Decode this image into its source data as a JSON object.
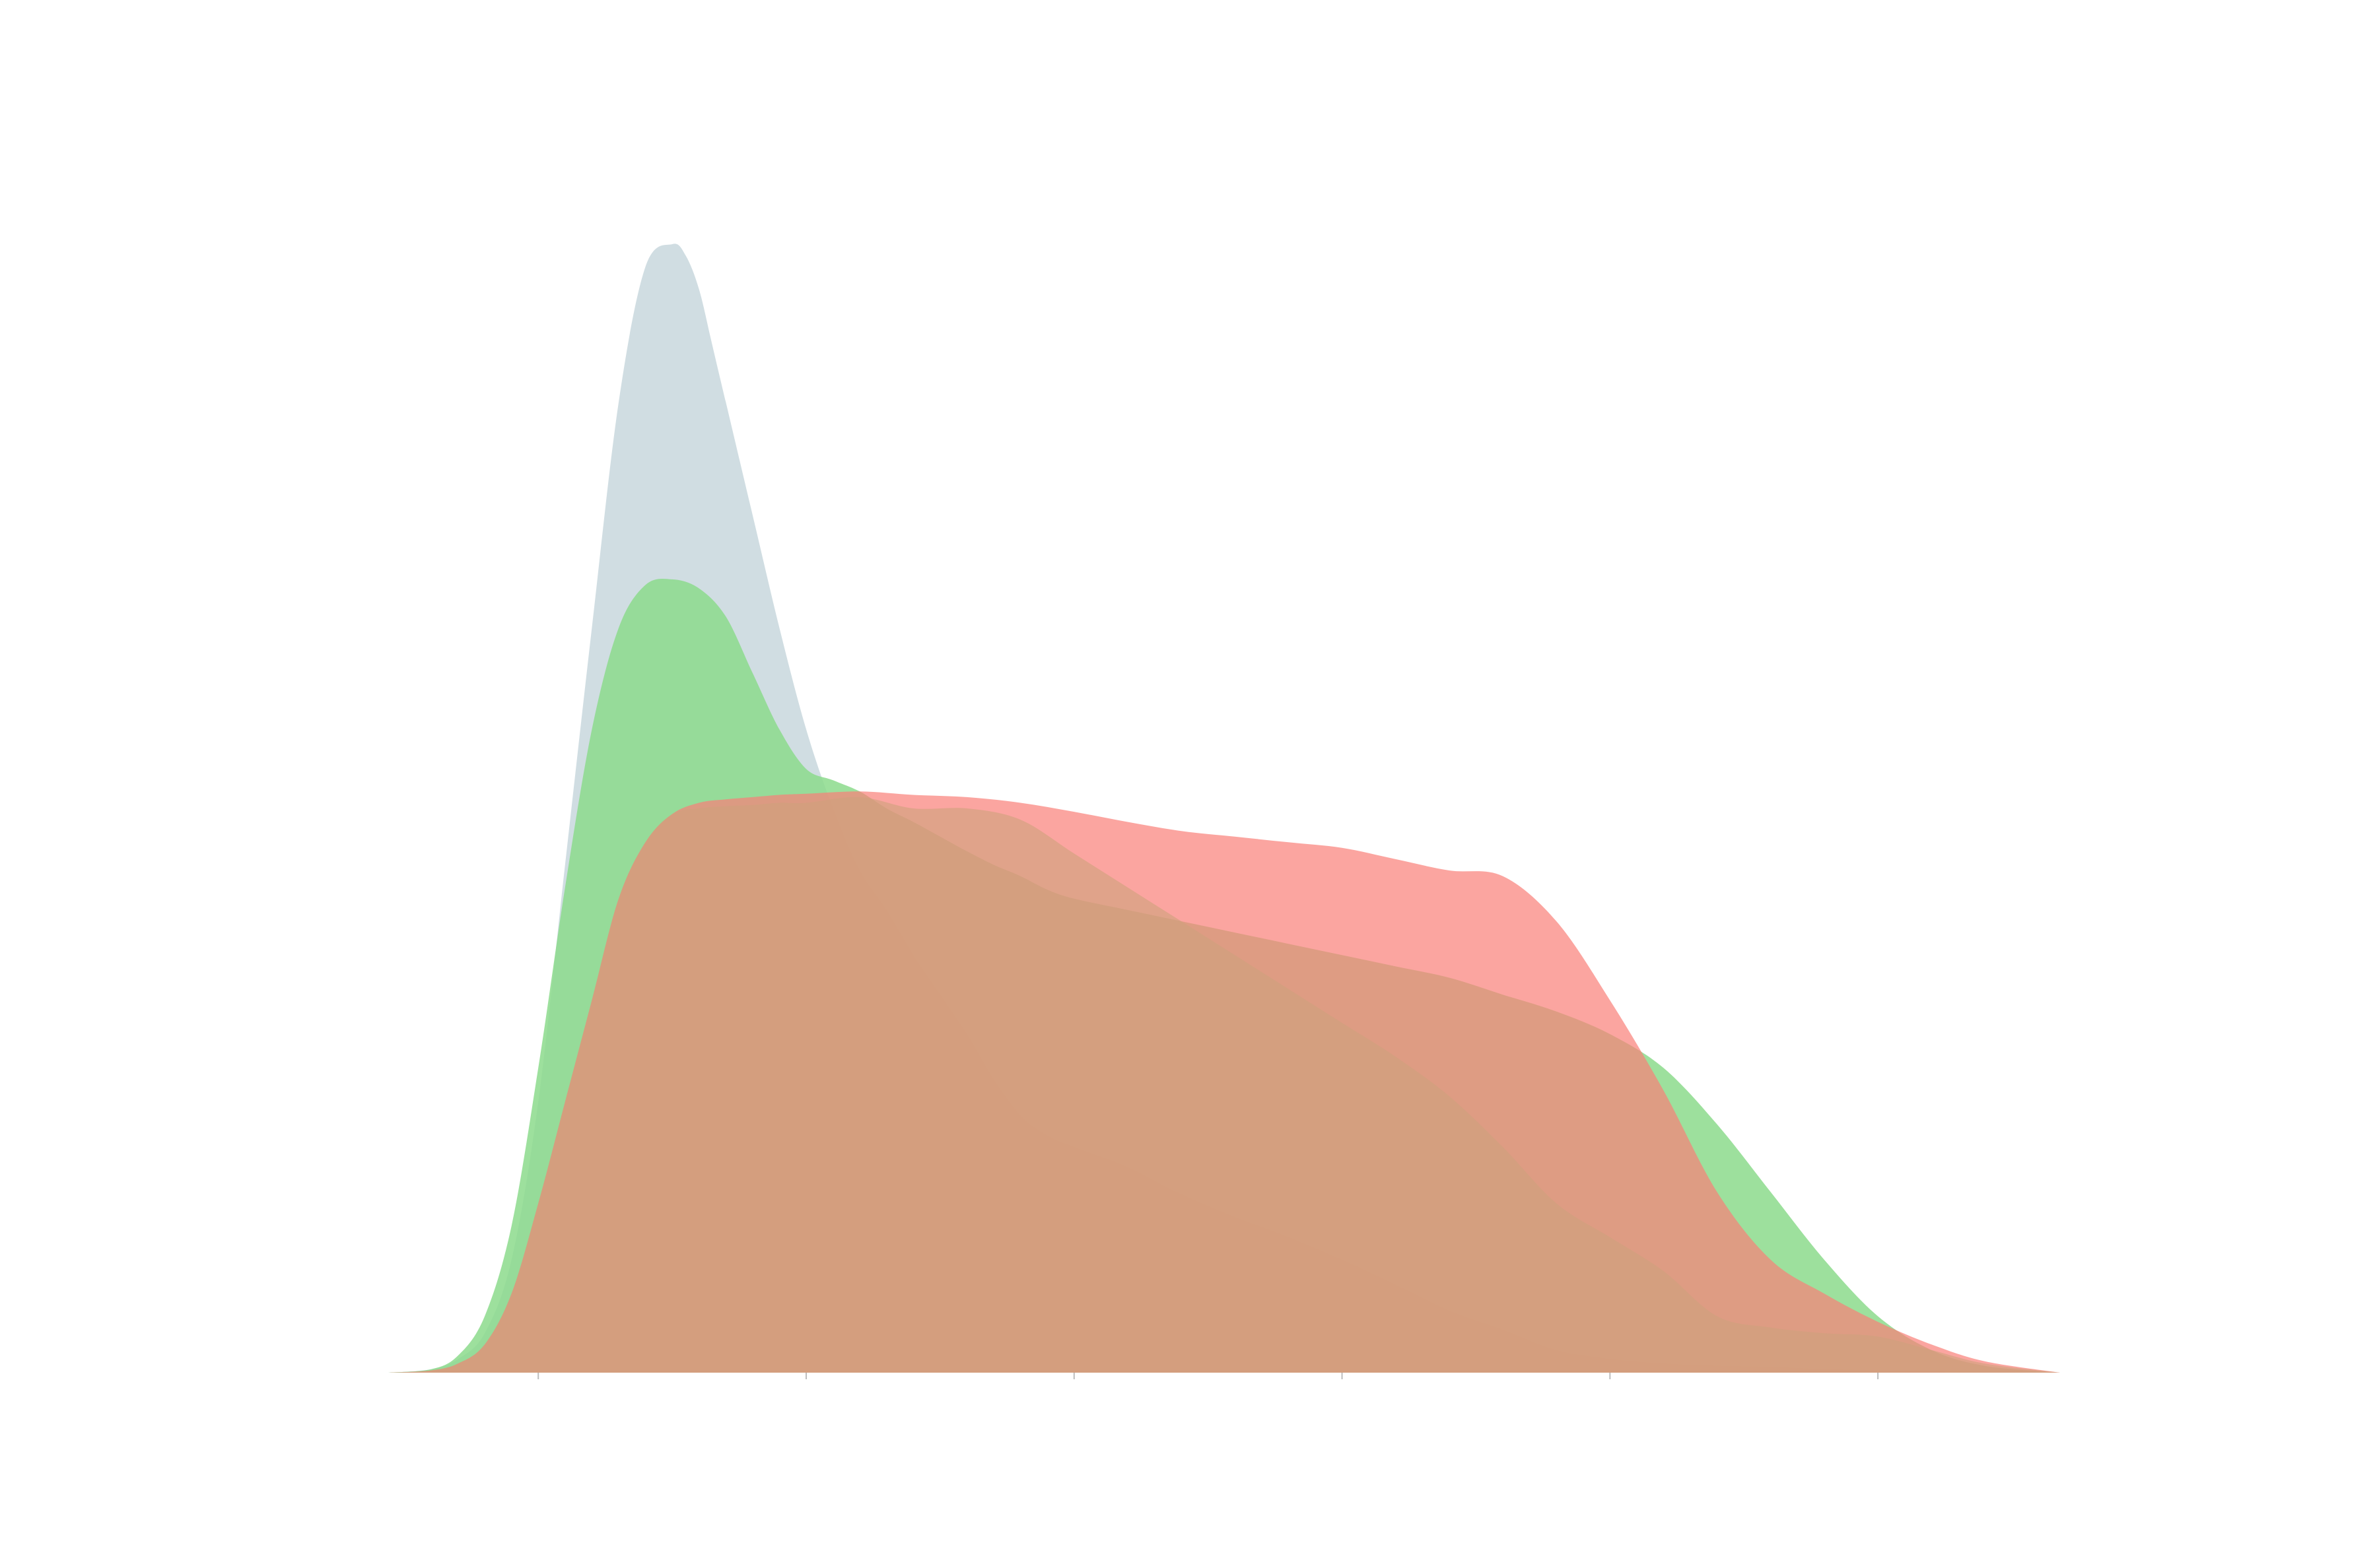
{
  "chart_data": {
    "type": "area",
    "title": "",
    "xlabel": "",
    "ylabel": "",
    "xlim": [
      -0.56,
      5.68
    ],
    "ylim": [
      0,
      1.0
    ],
    "x_ticks": [
      0,
      1,
      2,
      3,
      4,
      5
    ],
    "x_tick_labels": [],
    "grid": false,
    "legend": "none",
    "series": [
      {
        "color": "#b3c8d1",
        "opacity": 0.62,
        "x": [
          -0.56,
          -0.4,
          -0.3,
          -0.2,
          -0.1,
          0.0,
          0.1,
          0.2,
          0.3,
          0.4,
          0.5,
          0.55,
          0.6,
          0.65,
          0.7,
          0.8,
          0.9,
          1.0,
          1.1,
          1.2,
          1.3,
          1.4,
          1.5,
          1.6,
          1.7,
          1.8,
          1.9,
          2.0,
          2.2,
          2.4,
          2.6,
          2.8,
          3.0,
          3.2,
          3.4,
          3.6,
          3.8,
          4.0,
          4.2,
          4.4,
          4.6,
          4.8,
          5.0,
          5.2,
          5.4,
          5.68
        ],
        "y": [
          0.0,
          0.003,
          0.012,
          0.035,
          0.1,
          0.24,
          0.45,
          0.66,
          0.86,
          0.98,
          1.0,
          0.99,
          0.96,
          0.91,
          0.86,
          0.76,
          0.66,
          0.57,
          0.5,
          0.445,
          0.41,
          0.37,
          0.335,
          0.3,
          0.26,
          0.228,
          0.21,
          0.2,
          0.182,
          0.158,
          0.138,
          0.12,
          0.1,
          0.078,
          0.055,
          0.038,
          0.02,
          0.012,
          0.008,
          0.006,
          0.005,
          0.003,
          0.002,
          0.001,
          0.0005,
          0.0
        ]
      },
      {
        "color": "#8cdb8c",
        "opacity": 0.85,
        "x": [
          -0.56,
          -0.4,
          -0.3,
          -0.2,
          -0.1,
          0.0,
          0.1,
          0.2,
          0.3,
          0.4,
          0.5,
          0.6,
          0.7,
          0.8,
          0.9,
          1.0,
          1.1,
          1.2,
          1.3,
          1.4,
          1.5,
          1.6,
          1.7,
          1.8,
          1.9,
          2.0,
          2.2,
          2.4,
          2.6,
          2.8,
          3.0,
          3.2,
          3.4,
          3.6,
          3.8,
          4.0,
          4.2,
          4.4,
          4.6,
          4.8,
          5.0,
          5.2,
          5.4,
          5.68
        ],
        "y": [
          0.0,
          0.003,
          0.015,
          0.05,
          0.13,
          0.27,
          0.43,
          0.57,
          0.66,
          0.698,
          0.703,
          0.695,
          0.67,
          0.62,
          0.57,
          0.535,
          0.525,
          0.515,
          0.5,
          0.488,
          0.475,
          0.462,
          0.45,
          0.44,
          0.428,
          0.42,
          0.41,
          0.4,
          0.39,
          0.38,
          0.37,
          0.36,
          0.35,
          0.335,
          0.32,
          0.3,
          0.27,
          0.22,
          0.16,
          0.1,
          0.05,
          0.02,
          0.006,
          0.0
        ]
      },
      {
        "color": "#fa7f78",
        "opacity": 0.7,
        "x": [
          -0.56,
          -0.4,
          -0.3,
          -0.2,
          -0.1,
          0.0,
          0.1,
          0.2,
          0.3,
          0.4,
          0.5,
          0.6,
          0.7,
          0.8,
          0.9,
          1.0,
          1.2,
          1.4,
          1.6,
          1.8,
          2.0,
          2.2,
          2.4,
          2.6,
          2.8,
          3.0,
          3.2,
          3.4,
          3.6,
          3.8,
          4.0,
          4.2,
          4.4,
          4.6,
          4.8,
          5.0,
          5.2,
          5.4,
          5.68
        ],
        "y": [
          0.0,
          0.002,
          0.008,
          0.025,
          0.07,
          0.15,
          0.24,
          0.33,
          0.42,
          0.47,
          0.495,
          0.505,
          0.508,
          0.51,
          0.512,
          0.513,
          0.515,
          0.512,
          0.51,
          0.505,
          0.497,
          0.488,
          0.48,
          0.475,
          0.47,
          0.465,
          0.455,
          0.445,
          0.44,
          0.4,
          0.33,
          0.25,
          0.16,
          0.1,
          0.07,
          0.045,
          0.025,
          0.01,
          0.0
        ]
      },
      {
        "color": "#cfa17d",
        "opacity": 0.62,
        "x": [
          -0.56,
          -0.4,
          -0.3,
          -0.2,
          -0.1,
          0.0,
          0.1,
          0.2,
          0.3,
          0.4,
          0.5,
          0.6,
          0.7,
          0.8,
          0.9,
          1.0,
          1.2,
          1.4,
          1.6,
          1.8,
          2.0,
          2.2,
          2.4,
          2.6,
          2.8,
          3.0,
          3.2,
          3.4,
          3.6,
          3.8,
          4.0,
          4.2,
          4.4,
          4.6,
          4.8,
          5.0,
          5.2,
          5.4,
          5.68
        ],
        "y": [
          0.0,
          0.002,
          0.008,
          0.025,
          0.07,
          0.15,
          0.24,
          0.33,
          0.42,
          0.47,
          0.495,
          0.5,
          0.502,
          0.503,
          0.505,
          0.505,
          0.51,
          0.5,
          0.5,
          0.49,
          0.46,
          0.43,
          0.4,
          0.37,
          0.34,
          0.31,
          0.28,
          0.245,
          0.2,
          0.15,
          0.12,
          0.09,
          0.05,
          0.04,
          0.035,
          0.032,
          0.02,
          0.008,
          0.0
        ]
      }
    ]
  }
}
